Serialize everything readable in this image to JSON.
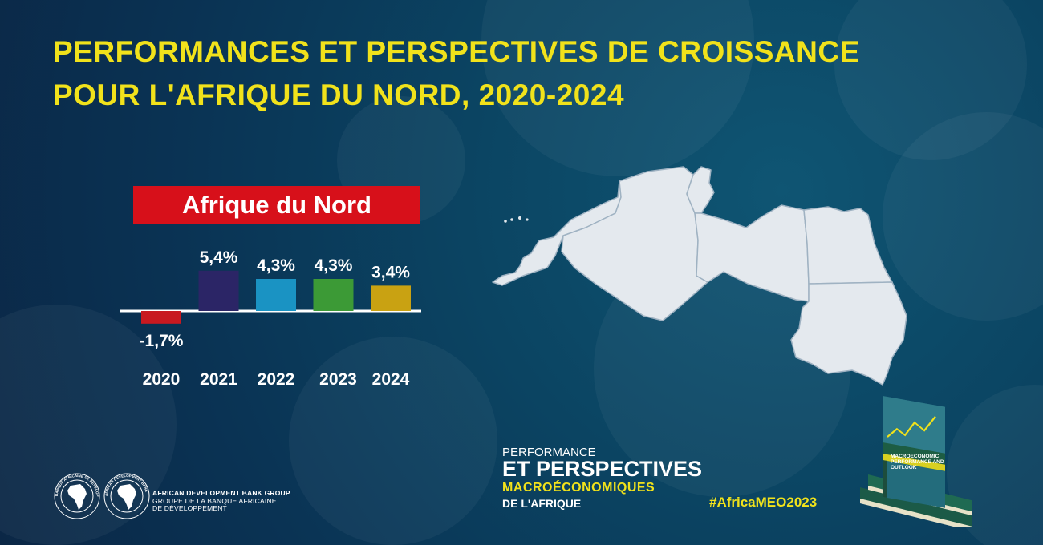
{
  "header": {
    "title_line1": "PERFORMANCES ET PERSPECTIVES DE CROISSANCE",
    "title_line2": "POUR L'AFRIQUE DU NORD, 2020-2024"
  },
  "region_label": "Afrique du Nord",
  "chart_data": {
    "type": "bar",
    "title": "Afrique du Nord",
    "categories": [
      "2020",
      "2021",
      "2022",
      "2023",
      "2024"
    ],
    "values": [
      -1.7,
      5.4,
      4.3,
      4.3,
      3.4
    ],
    "labels": [
      "-1,7%",
      "5,4%",
      "4,3%",
      "4,3%",
      "3,4%"
    ],
    "colors": [
      "#c81920",
      "#2b2566",
      "#1a93c3",
      "#3c9a36",
      "#c9a212"
    ],
    "xlabel": "",
    "ylabel": "",
    "ylim": [
      -1.7,
      5.4
    ],
    "grid": false
  },
  "footer": {
    "org_name_en": "AFRICAN DEVELOPMENT BANK GROUP",
    "org_name_fr_1": "GROUPE DE LA BANQUE AFRICAINE",
    "org_name_fr_2": "DE DÉVELOPPEMENT",
    "logo_ring_text_fr": "BANQUE AFRICAINE DE DÉVELOPPEMENT",
    "logo_ring_text_en": "AFRICAN DEVELOPMENT BANK",
    "brand_line1": "PERFORMANCE",
    "brand_line2": "ET PERSPECTIVES",
    "brand_line3": "MACROÉCONOMIQUES",
    "brand_line4": "DE L'AFRIQUE",
    "hashtag": "#AfricaMEO2023",
    "book_title": "MACROECONOMIC PERFORMANCE AND OUTLOOK"
  }
}
